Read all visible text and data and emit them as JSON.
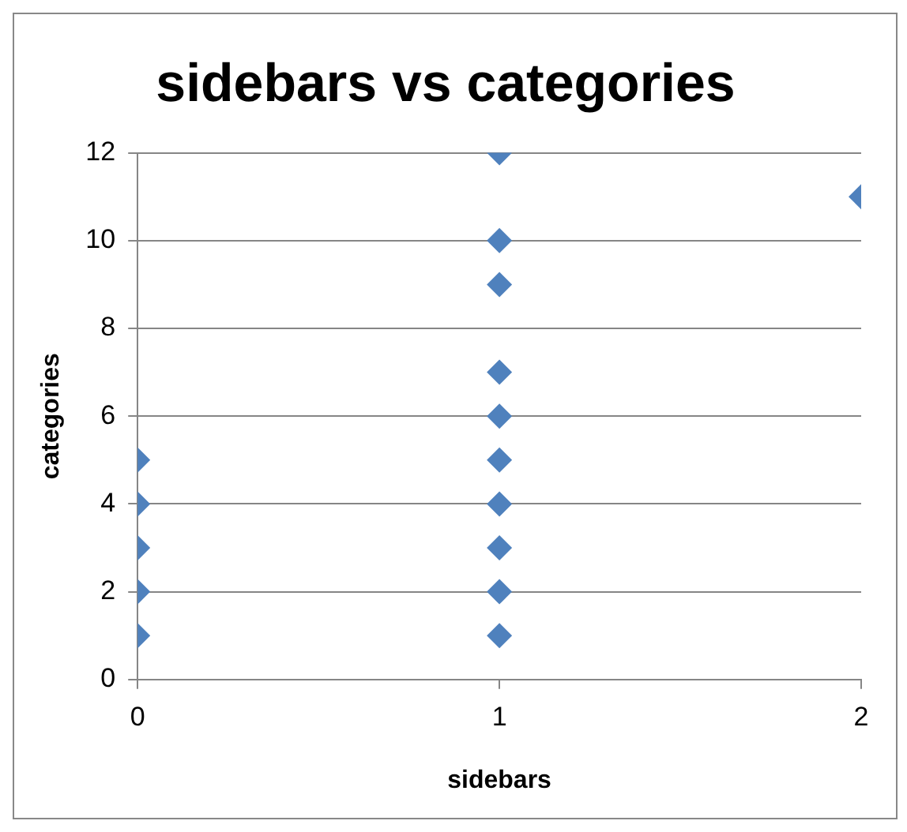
{
  "chart_data": {
    "type": "scatter",
    "title": "sidebars vs categories",
    "xlabel": "sidebars",
    "ylabel": "categories",
    "x": [
      0,
      0,
      0,
      0,
      0,
      1,
      1,
      1,
      1,
      1,
      1,
      1,
      1,
      1,
      1,
      2
    ],
    "series": [
      {
        "color": "#4f81bd",
        "values": [
          1,
          2,
          3,
          4,
          5,
          1,
          2,
          3,
          4,
          5,
          6,
          7,
          9,
          10,
          12,
          11
        ]
      }
    ],
    "xlim": [
      0,
      2
    ],
    "xticks": [
      0,
      1,
      2
    ],
    "ylim": [
      0,
      12
    ],
    "yticks": [
      0,
      2,
      4,
      6,
      8,
      10,
      12
    ],
    "grid": "y",
    "legend": false,
    "marker": "diamond"
  }
}
